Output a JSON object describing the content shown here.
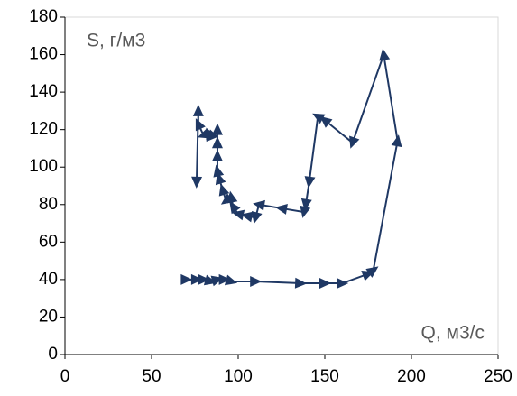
{
  "chart_data": {
    "type": "line",
    "annotations": [
      "S, г/м3",
      "Q, м3/с"
    ],
    "color": "#1f3864",
    "x": [
      70,
      76,
      80,
      84,
      88,
      92,
      96,
      110,
      136,
      150,
      160,
      175,
      178,
      192,
      184,
      166,
      150,
      146,
      141,
      139,
      138,
      125,
      112,
      110,
      105,
      100,
      97,
      96,
      93,
      91,
      89,
      88,
      88,
      88,
      88,
      84,
      83,
      80,
      77,
      77,
      76
    ],
    "y": [
      40,
      40,
      40,
      39,
      40,
      40,
      39,
      39,
      38,
      38,
      38,
      43,
      45,
      114,
      160,
      113,
      125,
      127,
      92,
      80,
      76,
      78,
      80,
      73,
      74,
      75,
      79,
      84,
      82,
      88,
      94,
      98,
      106,
      113,
      120,
      116,
      118,
      117,
      123,
      130,
      92
    ],
    "xlim": [
      0,
      250
    ],
    "xticks": [
      0,
      50,
      100,
      150,
      200,
      250
    ],
    "ylim": [
      0,
      180
    ],
    "yticks": [
      0,
      20,
      40,
      60,
      80,
      100,
      120,
      140,
      160,
      180
    ]
  }
}
